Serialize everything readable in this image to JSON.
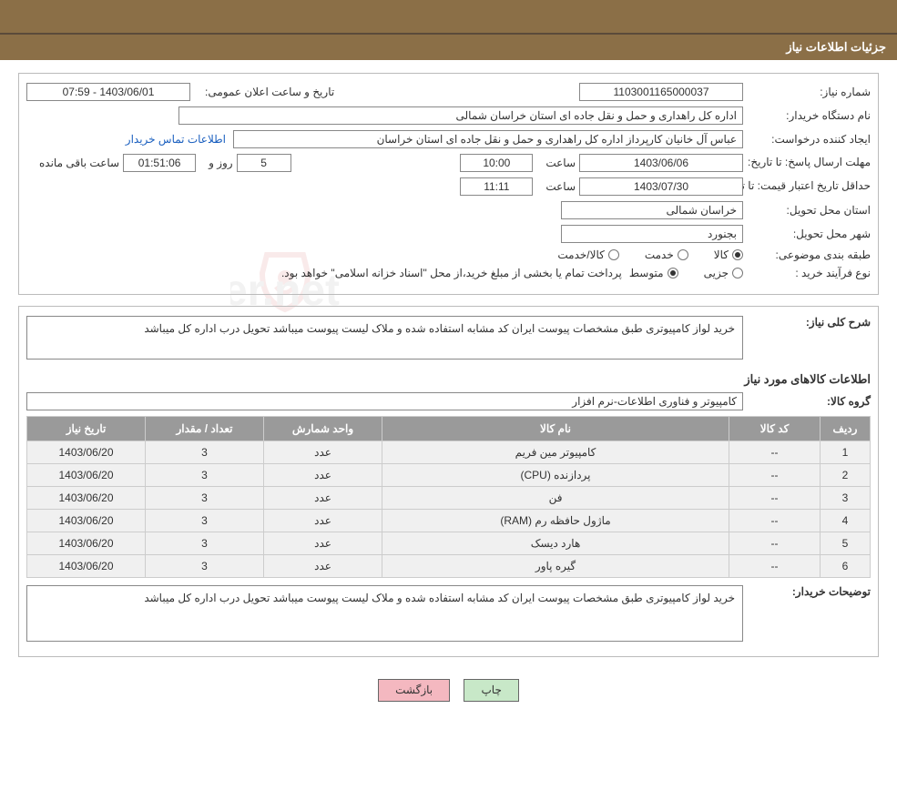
{
  "header": {
    "title": "جزئیات اطلاعات نیاز"
  },
  "form": {
    "need_number_label": "شماره نیاز:",
    "need_number": "1103001165000037",
    "announce_label": "تاریخ و ساعت اعلان عمومی:",
    "announce_value": "1403/06/01 - 07:59",
    "buyer_label": "نام دستگاه خریدار:",
    "buyer_value": "اداره کل راهداری و حمل و نقل جاده ای استان خراسان شمالی",
    "requester_label": "ایجاد کننده درخواست:",
    "requester_value": "عباس آل خانیان کارپرداز اداره کل راهداری و حمل و نقل جاده ای استان خراسان",
    "contact_link": "اطلاعات تماس خریدار",
    "deadline_label": "مهلت ارسال پاسخ: تا تاریخ:",
    "deadline_date": "1403/06/06",
    "time_label": "ساعت",
    "deadline_time": "10:00",
    "days_label": "روز و",
    "days_value": "5",
    "remaining_time": "01:51:06",
    "remaining_label": "ساعت باقی مانده",
    "validity_label": "حداقل تاریخ اعتبار قیمت: تا تاریخ:",
    "validity_date": "1403/07/30",
    "validity_time": "11:11",
    "province_label": "استان محل تحویل:",
    "province_value": "خراسان شمالی",
    "city_label": "شهر محل تحویل:",
    "city_value": "بجنورد",
    "category_label": "طبقه بندی موضوعی:",
    "radio_goods": "کالا",
    "radio_service": "خدمت",
    "radio_both": "کالا/خدمت",
    "process_label": "نوع فرآیند خرید :",
    "radio_partial": "جزیی",
    "radio_medium": "متوسط",
    "process_note": "پرداخت تمام یا بخشی از مبلغ خرید،از محل \"اسناد خزانه اسلامی\" خواهد بود."
  },
  "description": {
    "label": "شرح کلی نیاز:",
    "text": "خرید لواز کامپیوتری طبق مشخصات پیوست ایران کد مشابه استفاده شده و ملاک لیست پیوست میباشد تحویل درب اداره کل میباشد"
  },
  "items": {
    "section_title": "اطلاعات کالاهای مورد نیاز",
    "group_label": "گروه کالا:",
    "group_value": "کامپیوتر و فناوری اطلاعات-نرم افزار",
    "columns": {
      "row": "ردیف",
      "code": "کد کالا",
      "name": "نام کالا",
      "unit": "واحد شمارش",
      "qty": "تعداد / مقدار",
      "date": "تاریخ نیاز"
    },
    "rows": [
      {
        "n": "1",
        "code": "--",
        "name": "کامپیوتر مین فریم",
        "unit": "عدد",
        "qty": "3",
        "date": "1403/06/20"
      },
      {
        "n": "2",
        "code": "--",
        "name": "پردازنده (CPU)",
        "unit": "عدد",
        "qty": "3",
        "date": "1403/06/20"
      },
      {
        "n": "3",
        "code": "--",
        "name": "فن",
        "unit": "عدد",
        "qty": "3",
        "date": "1403/06/20"
      },
      {
        "n": "4",
        "code": "--",
        "name": "ماژول حافظه رم (RAM)",
        "unit": "عدد",
        "qty": "3",
        "date": "1403/06/20"
      },
      {
        "n": "5",
        "code": "--",
        "name": "هارد دیسک",
        "unit": "عدد",
        "qty": "3",
        "date": "1403/06/20"
      },
      {
        "n": "6",
        "code": "--",
        "name": "گیره پاور",
        "unit": "عدد",
        "qty": "3",
        "date": "1403/06/20"
      }
    ]
  },
  "buyer_notes": {
    "label": "توضیحات خریدار:",
    "text": "خرید لواز کامپیوتری طبق مشخصات پیوست ایران کد مشابه استفاده شده و ملاک لیست پیوست میباشد تحویل درب اداره کل میباشد"
  },
  "buttons": {
    "back": "بازگشت",
    "print": "چاپ"
  },
  "colors": {
    "header_bg": "#8b6f47",
    "th_bg": "#9a9a9a",
    "td_bg": "#f0f0f0",
    "link": "#1a5fbf",
    "btn_back": "#f4b8c0",
    "btn_print": "#c8e8c8"
  }
}
